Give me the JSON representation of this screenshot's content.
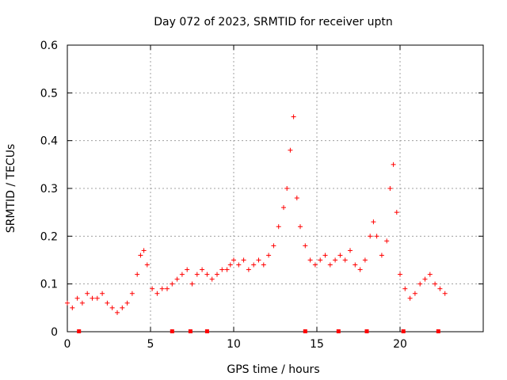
{
  "chart_data": {
    "type": "scatter",
    "title": "Day 072 of 2023, SRMTID for receiver uptn",
    "xlabel": "GPS time / hours",
    "ylabel": "SRMTID / TECUs",
    "xlim": [
      0,
      25
    ],
    "ylim": [
      0,
      0.6
    ],
    "grid": true,
    "marker": "+",
    "color": "#ff0000",
    "x_ticks": [
      0,
      5,
      10,
      15,
      20
    ],
    "x_tick_labels": [
      "0",
      "5",
      "10",
      "15",
      "20"
    ],
    "y_ticks": [
      0,
      0.1,
      0.2,
      0.3,
      0.4,
      0.5,
      0.6
    ],
    "y_tick_labels": [
      "0",
      "0.1",
      "0.2",
      "0.3",
      "0.4",
      "0.5",
      "0.6"
    ],
    "series": [
      {
        "name": "SRMTID",
        "x": [
          0.0,
          0.3,
          0.6,
          0.9,
          1.2,
          1.5,
          1.8,
          2.1,
          2.4,
          2.7,
          3.0,
          3.3,
          3.6,
          3.9,
          4.2,
          4.4,
          4.6,
          4.8,
          5.1,
          5.4,
          5.7,
          6.0,
          6.3,
          6.6,
          6.9,
          7.2,
          7.5,
          7.8,
          8.1,
          8.4,
          8.7,
          9.0,
          9.3,
          9.6,
          9.8,
          10.0,
          10.3,
          10.6,
          10.9,
          11.2,
          11.5,
          11.8,
          12.1,
          12.4,
          12.7,
          13.0,
          13.2,
          13.4,
          13.6,
          13.8,
          14.0,
          14.3,
          14.6,
          14.9,
          15.2,
          15.5,
          15.8,
          16.1,
          16.4,
          16.7,
          17.0,
          17.3,
          17.6,
          17.9,
          18.2,
          18.4,
          18.6,
          18.9,
          19.2,
          19.4,
          19.6,
          19.8,
          20.0,
          20.3,
          20.6,
          20.9,
          21.2,
          21.5,
          21.8,
          22.1,
          22.4,
          22.7
        ],
        "y": [
          0.06,
          0.05,
          0.07,
          0.06,
          0.08,
          0.07,
          0.07,
          0.08,
          0.06,
          0.05,
          0.04,
          0.05,
          0.06,
          0.08,
          0.12,
          0.16,
          0.17,
          0.14,
          0.09,
          0.08,
          0.09,
          0.09,
          0.1,
          0.11,
          0.12,
          0.13,
          0.1,
          0.12,
          0.13,
          0.12,
          0.11,
          0.12,
          0.13,
          0.13,
          0.14,
          0.15,
          0.14,
          0.15,
          0.13,
          0.14,
          0.15,
          0.14,
          0.16,
          0.18,
          0.22,
          0.26,
          0.3,
          0.38,
          0.45,
          0.28,
          0.22,
          0.18,
          0.15,
          0.14,
          0.15,
          0.16,
          0.14,
          0.15,
          0.16,
          0.15,
          0.17,
          0.14,
          0.13,
          0.15,
          0.2,
          0.23,
          0.2,
          0.16,
          0.19,
          0.3,
          0.35,
          0.25,
          0.12,
          0.09,
          0.07,
          0.08,
          0.1,
          0.11,
          0.12,
          0.1,
          0.09,
          0.08
        ]
      }
    ],
    "lower_axis_markers_x": [
      0.7,
      6.3,
      7.4,
      8.4,
      14.3,
      16.3,
      18.0,
      20.2,
      22.3
    ]
  }
}
